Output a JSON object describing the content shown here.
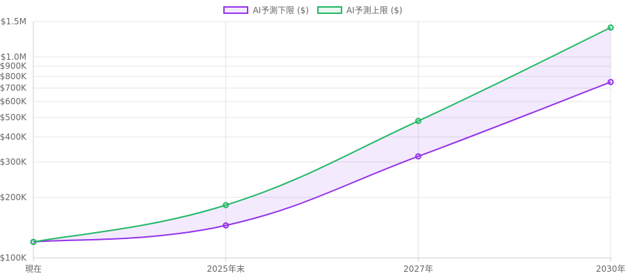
{
  "chart_data": {
    "type": "line",
    "title": "",
    "xlabel": "",
    "ylabel": "",
    "categories": [
      "現在",
      "2025年末",
      "2027年",
      "2030年"
    ],
    "y_scale": "log",
    "ylim": [
      100000,
      1500000
    ],
    "y_ticks": [
      {
        "value": 100000,
        "label": "$100K"
      },
      {
        "value": 200000,
        "label": "$200K"
      },
      {
        "value": 300000,
        "label": "$300K"
      },
      {
        "value": 400000,
        "label": "$400K"
      },
      {
        "value": 500000,
        "label": "$500K"
      },
      {
        "value": 600000,
        "label": "$600K"
      },
      {
        "value": 700000,
        "label": "$700K"
      },
      {
        "value": 800000,
        "label": "$800K"
      },
      {
        "value": 900000,
        "label": "$900K"
      },
      {
        "value": 1000000,
        "label": "$1.0M"
      },
      {
        "value": 1500000,
        "label": "$1.5M"
      }
    ],
    "series": [
      {
        "name": "AI予測下限 ($)",
        "values": [
          120000,
          145000,
          320000,
          750000
        ],
        "color": "#9333ea",
        "fill_color": "rgba(147, 51, 234, 0.1)"
      },
      {
        "name": "AI予測上限 ($)",
        "values": [
          120000,
          183000,
          480000,
          1400000
        ],
        "color": "#22b866",
        "fill_color": "rgba(34, 184, 102, 0.1)"
      }
    ],
    "band_fill": "between-series",
    "grid": true,
    "legend_position": "top-center"
  }
}
